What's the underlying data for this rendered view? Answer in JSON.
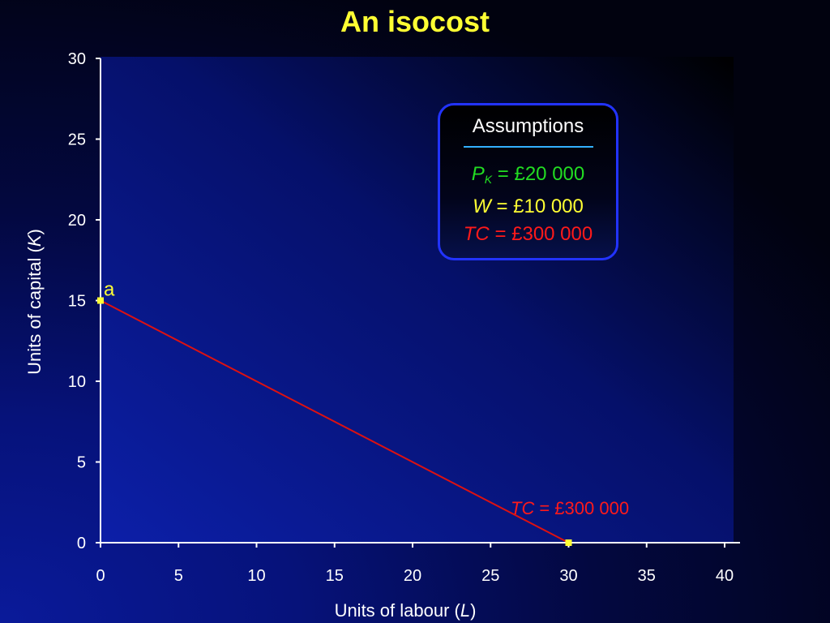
{
  "title": "An isocost",
  "chart_data": {
    "type": "line",
    "xlabel_text": "Units of labour (",
    "xlabel_var": "L",
    "xlabel_close": ")",
    "ylabel_text": "Units of capital (",
    "ylabel_var": "K",
    "ylabel_close": ")",
    "xlim": [
      0,
      40
    ],
    "ylim": [
      0,
      30
    ],
    "x_ticks": [
      "0",
      "5",
      "10",
      "15",
      "20",
      "25",
      "30",
      "35",
      "40"
    ],
    "y_ticks": [
      "0",
      "5",
      "10",
      "15",
      "20",
      "25",
      "30"
    ],
    "series": [
      {
        "label_var": "TC",
        "label_value": "= £300 000",
        "color": "#dd1111",
        "points": [
          {
            "x": 0,
            "y": 15
          },
          {
            "x": 30,
            "y": 0
          }
        ]
      }
    ],
    "points": [
      {
        "label": "a",
        "x": 0,
        "y": 15
      },
      {
        "label": "",
        "x": 30,
        "y": 0
      }
    ],
    "point_color": "#ffff33"
  },
  "assumptions": {
    "heading": "Assumptions",
    "pk_var": "P",
    "pk_sub": "K",
    "pk_value": "= £20 000",
    "w_var": "W",
    "w_value": "= £10 000",
    "tc_var": "TC",
    "tc_value": "= £300 000"
  }
}
